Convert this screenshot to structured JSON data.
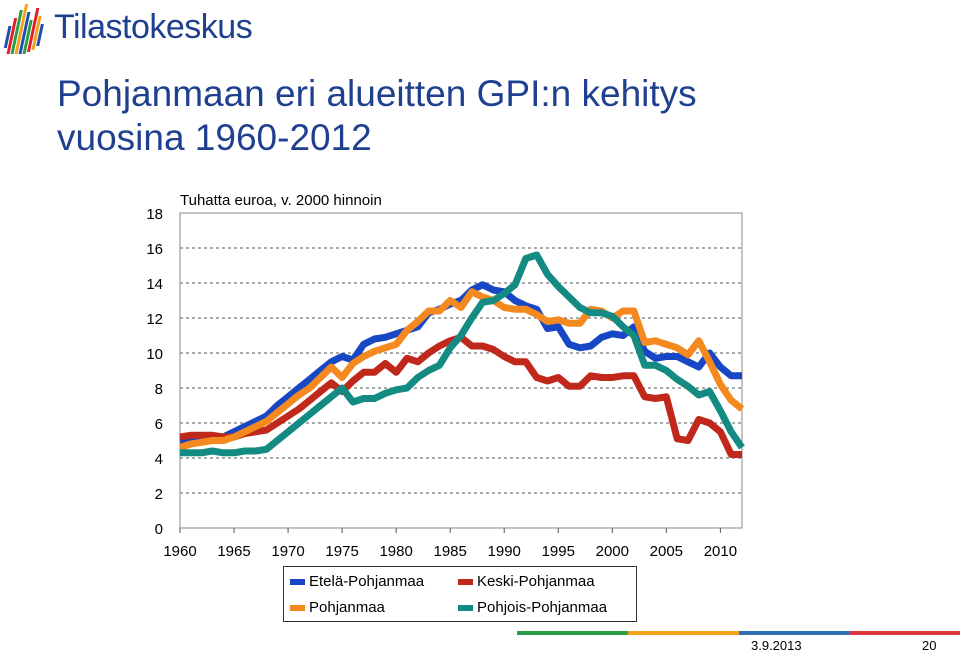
{
  "header": {
    "logo_text": "Tilastokeskus",
    "title_line1": "Pohjanmaan eri alueitten GPI:n kehitys",
    "title_line2": "vuosina 1960-2012"
  },
  "logo_colors": [
    "#1f4fa8",
    "#e21f26",
    "#2a9d45",
    "#f4a11c",
    "#1f4fa8",
    "#2a9d45",
    "#e21f26",
    "#f4a11c",
    "#1f4fa8"
  ],
  "footer": {
    "date": "3.9.2013",
    "page": "20",
    "bar_colors": [
      "#2a9d45",
      "#f4a11c",
      "#2e6fb7",
      "#d9363e"
    ]
  },
  "chart_data": {
    "type": "line",
    "ylabel": "Tuhatta euroa, v. 2000 hinnoin",
    "xlabel": "",
    "xlim": [
      1960,
      2012
    ],
    "ylim": [
      0,
      18
    ],
    "xticks": [
      1960,
      1965,
      1970,
      1975,
      1980,
      1985,
      1990,
      1995,
      2000,
      2005,
      2010
    ],
    "xtick_labels": [
      "1960",
      "1965",
      "1970",
      "1975",
      "1980",
      "1985",
      "1990",
      "1995",
      "2000",
      "2005",
      "2010"
    ],
    "yticks": [
      0,
      2,
      4,
      6,
      8,
      10,
      12,
      14,
      16,
      18
    ],
    "ytick_labels": [
      "0",
      "2",
      "4",
      "6",
      "8",
      "10",
      "12",
      "14",
      "16",
      "18"
    ],
    "grid": "horizontal dashed",
    "legend_position": "bottom",
    "x": [
      1960,
      1961,
      1962,
      1963,
      1964,
      1965,
      1966,
      1967,
      1968,
      1969,
      1970,
      1971,
      1972,
      1973,
      1974,
      1975,
      1976,
      1977,
      1978,
      1979,
      1980,
      1981,
      1982,
      1983,
      1984,
      1985,
      1986,
      1987,
      1988,
      1989,
      1990,
      1991,
      1992,
      1993,
      1994,
      1995,
      1996,
      1997,
      1998,
      1999,
      2000,
      2001,
      2002,
      2003,
      2004,
      2005,
      2006,
      2007,
      2008,
      2009,
      2010,
      2011,
      2012
    ],
    "series": [
      {
        "name": "Etelä-Pohjanmaa",
        "color": "#1747c4",
        "values": [
          5.0,
          5.1,
          5.1,
          5.2,
          5.2,
          5.5,
          5.8,
          6.1,
          6.4,
          7.0,
          7.5,
          8.0,
          8.5,
          9.0,
          9.5,
          9.8,
          9.6,
          10.5,
          10.8,
          10.9,
          11.1,
          11.3,
          11.5,
          12.3,
          12.5,
          12.8,
          13.0,
          13.6,
          13.9,
          13.6,
          13.5,
          13.0,
          12.7,
          12.5,
          11.4,
          11.5,
          10.5,
          10.3,
          10.4,
          10.9,
          11.1,
          11.0,
          11.5,
          10.1,
          9.7,
          9.8,
          9.8,
          9.5,
          9.2,
          10.0,
          9.2,
          8.7,
          8.7
        ]
      },
      {
        "name": "Keski-Pohjanmaa",
        "color": "#c0281c",
        "values": [
          5.2,
          5.3,
          5.3,
          5.3,
          5.2,
          5.2,
          5.4,
          5.5,
          5.6,
          6.0,
          6.4,
          6.8,
          7.3,
          7.8,
          8.3,
          7.8,
          8.4,
          8.9,
          8.9,
          9.4,
          8.9,
          9.7,
          9.5,
          10.0,
          10.4,
          10.7,
          10.9,
          10.4,
          10.4,
          10.2,
          9.8,
          9.5,
          9.5,
          8.6,
          8.4,
          8.6,
          8.1,
          8.1,
          8.7,
          8.6,
          8.6,
          8.7,
          8.7,
          7.5,
          7.4,
          7.5,
          5.1,
          5.0,
          6.2,
          6.0,
          5.5,
          4.2,
          4.2
        ]
      },
      {
        "name": "Pohjanmaa",
        "color": "#f4891f",
        "values": [
          4.6,
          4.8,
          4.9,
          5.0,
          5.0,
          5.2,
          5.5,
          5.8,
          6.1,
          6.6,
          7.1,
          7.6,
          8.0,
          8.6,
          9.2,
          8.6,
          9.4,
          9.8,
          10.1,
          10.3,
          10.5,
          11.3,
          11.8,
          12.4,
          12.4,
          13.0,
          12.6,
          13.5,
          13.2,
          13.0,
          12.6,
          12.5,
          12.5,
          12.2,
          11.8,
          11.9,
          11.7,
          11.7,
          12.5,
          12.4,
          12.0,
          12.4,
          12.4,
          10.6,
          10.7,
          10.5,
          10.3,
          9.9,
          10.7,
          9.5,
          8.2,
          7.3,
          6.8
        ]
      },
      {
        "name": "Pohjois-Pohjanmaa",
        "color": "#138a82",
        "values": [
          4.3,
          4.3,
          4.3,
          4.4,
          4.3,
          4.3,
          4.4,
          4.4,
          4.5,
          5.0,
          5.5,
          6.0,
          6.5,
          7.0,
          7.5,
          8.0,
          7.2,
          7.4,
          7.4,
          7.7,
          7.9,
          8.0,
          8.6,
          9.0,
          9.3,
          10.3,
          11.0,
          12.0,
          12.9,
          13.0,
          13.4,
          13.9,
          15.4,
          15.6,
          14.5,
          13.8,
          13.2,
          12.6,
          12.3,
          12.3,
          12.1,
          11.5,
          11.0,
          9.3,
          9.3,
          9.0,
          8.5,
          8.1,
          7.6,
          7.8,
          6.7,
          5.5,
          4.6
        ]
      }
    ]
  }
}
